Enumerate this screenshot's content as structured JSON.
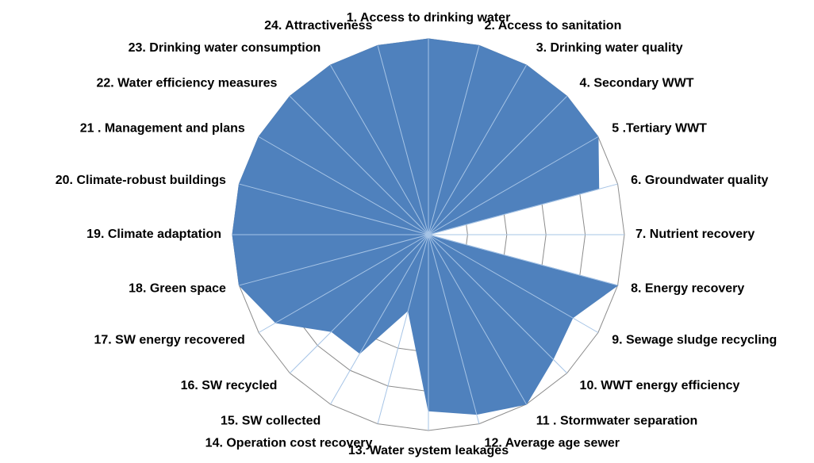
{
  "chart_data": {
    "type": "radar",
    "categories": [
      "1. Access to drinking water",
      "2. Access to sanitation",
      "3. Drinking water quality",
      "4. Secondary WWT",
      "5 .Tertiary WWT",
      "6. Groundwater quality",
      "7. Nutrient recovery",
      "8. Energy recovery",
      "9. Sewage sludge recycling",
      "10. WWT energy efficiency",
      "11 . Stormwater separation",
      "12. Average age sewer",
      "13. Water system leakages",
      "14. Operation cost recovery",
      "15. SW collected",
      "16. SW recycled",
      "17. SW energy recovered",
      "18. Green space",
      "19. Climate adaptation",
      "20. Climate-robust buildings",
      "21 . Management and plans",
      "22. Water efficiency measures",
      "23. Drinking water consumption",
      "24. Attractiveness"
    ],
    "values": [
      10,
      10,
      10,
      10,
      10,
      9,
      0,
      10,
      8.5,
      9,
      10,
      9.5,
      9,
      4,
      7,
      7,
      9,
      10,
      10,
      10,
      10,
      10,
      10,
      10
    ],
    "color": "#4f81bd",
    "ylim": [
      0,
      10
    ],
    "yticks": [
      0,
      2,
      4,
      6,
      8,
      10
    ],
    "grid": true
  }
}
